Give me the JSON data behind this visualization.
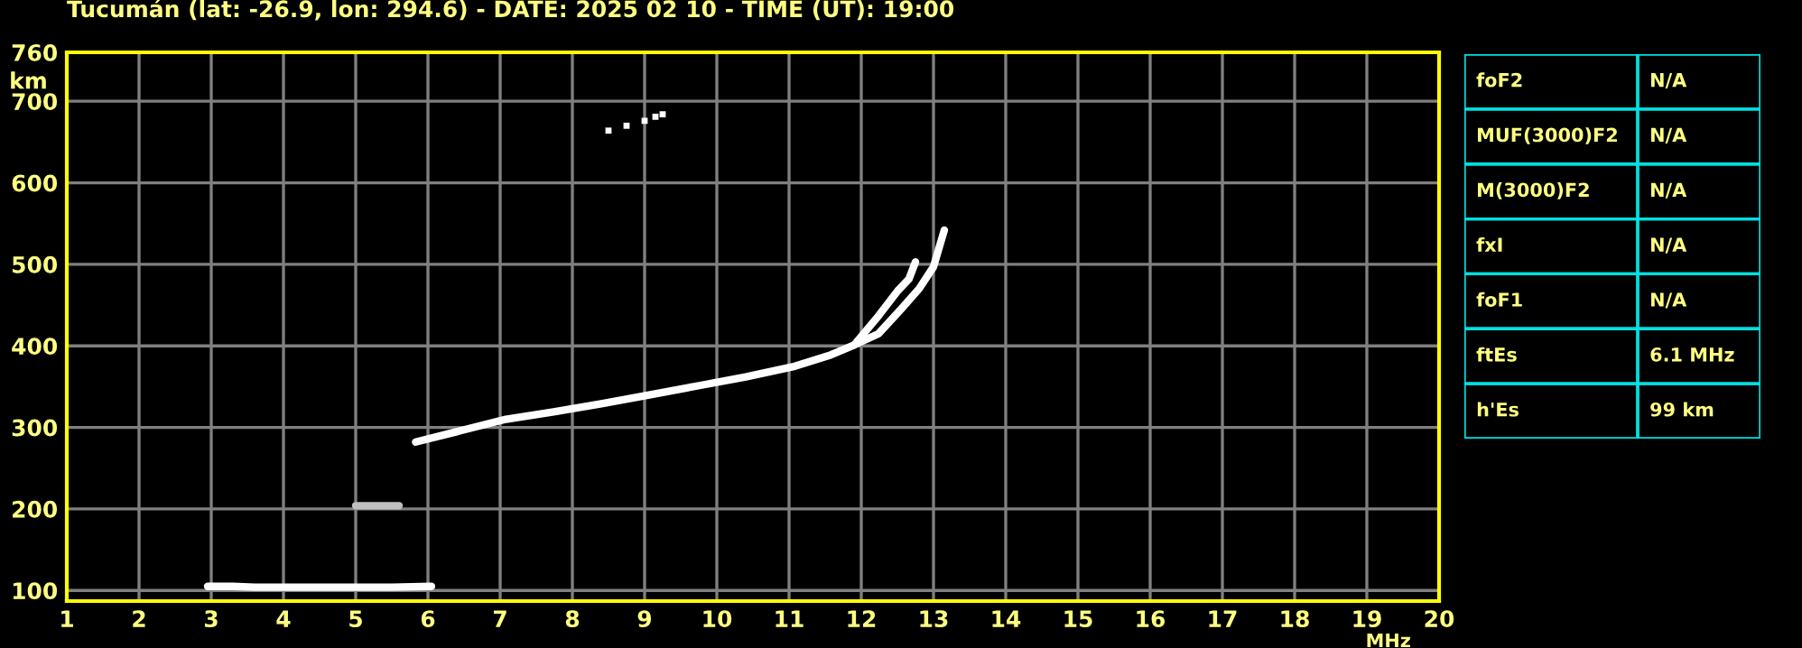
{
  "chart_data": [
    {
      "type": "line",
      "title": "Tucumán (lat: -26.9, lon: 294.6) - DATE: 2025 02 10 - TIME (UT): 19:00",
      "xlabel": "MHz",
      "ylabel": "km",
      "xlim": [
        1,
        20
      ],
      "xticks": [
        1,
        2,
        3,
        4,
        5,
        6,
        7,
        8,
        9,
        10,
        11,
        12,
        13,
        14,
        15,
        16,
        17,
        18,
        19,
        20
      ],
      "ylim": [
        87,
        760
      ],
      "yticks": [
        100,
        200,
        300,
        400,
        500,
        600,
        700,
        760
      ],
      "grid": true,
      "series": [
        {
          "color": "#ffffff",
          "x": [
            2.95,
            3.3,
            3.6,
            4.0,
            4.5,
            5.0,
            5.5,
            6.05
          ],
          "values": [
            105,
            105,
            104,
            104,
            104,
            104,
            104,
            105
          ]
        },
        {
          "color": "#ffffff",
          "x": [
            5.83,
            6.41,
            7.08,
            7.74,
            8.4,
            9.08,
            9.74,
            10.4,
            11.08,
            11.58,
            11.9,
            12.24,
            12.5,
            12.66,
            12.75
          ],
          "values": [
            282,
            295,
            310,
            319,
            329,
            340,
            351,
            362,
            375,
            389,
            401,
            437,
            467,
            482,
            503
          ]
        },
        {
          "color": "#ffffff",
          "x": [
            11.9,
            12.24,
            12.55,
            12.8,
            13.0,
            13.15
          ],
          "values": [
            401,
            415,
            445,
            470,
            497,
            542
          ]
        },
        {
          "color": "#c0c0c0",
          "x": [
            5.0,
            5.6
          ],
          "values": [
            204,
            204
          ]
        },
        {
          "type": "scatter",
          "color": "#ffffff",
          "x": [
            8.5,
            8.75,
            9.0,
            9.15,
            9.25
          ],
          "values": [
            664,
            670,
            676,
            681,
            684
          ]
        }
      ]
    },
    {
      "type": "other",
      "annotations": [
        "foF2",
        "N/A",
        "MUF(3000)F2",
        "N/A",
        "M(3000)F2",
        "N/A",
        "fxI",
        "N/A",
        "foF1",
        "N/A",
        "ftEs",
        "6.1 MHz",
        "h'Es",
        "99 km"
      ]
    }
  ]
}
